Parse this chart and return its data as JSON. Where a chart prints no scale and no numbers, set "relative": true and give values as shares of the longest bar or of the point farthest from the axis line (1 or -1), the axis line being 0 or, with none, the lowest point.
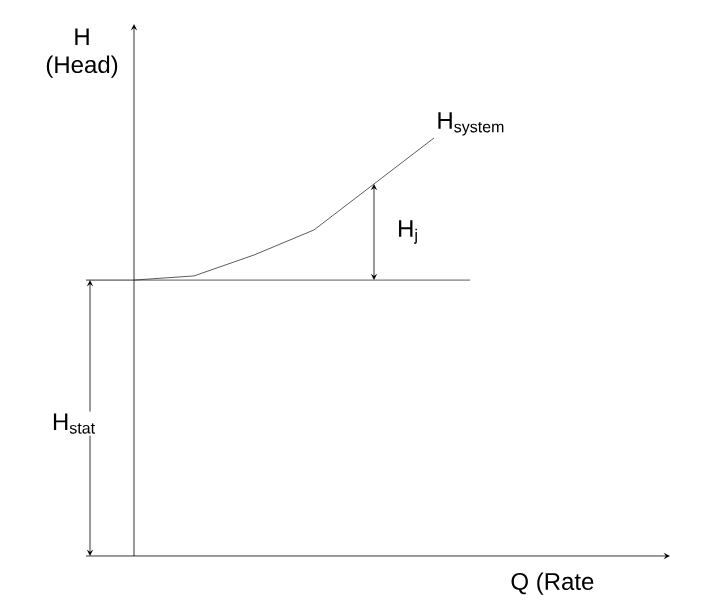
{
  "chart_data": {
    "type": "line",
    "relative": true,
    "xlabel": "Q (Rate",
    "ylabel": "H (Head)",
    "categories": [
      null,
      null,
      null,
      null,
      null,
      null
    ],
    "series": [
      {
        "name": "H$_{system}$",
        "color": "#333333",
        "values": [
          0.66,
          0.67,
          0.72,
          0.78,
          0.89,
          1
        ]
      }
    ],
    "ref_lines": [
      {
        "axis": "y",
        "value": 0.66,
        "color": "#333333"
      }
    ],
    "annotations": [
      "H$_{j}$",
      "H$_{stat}$"
    ]
  }
}
